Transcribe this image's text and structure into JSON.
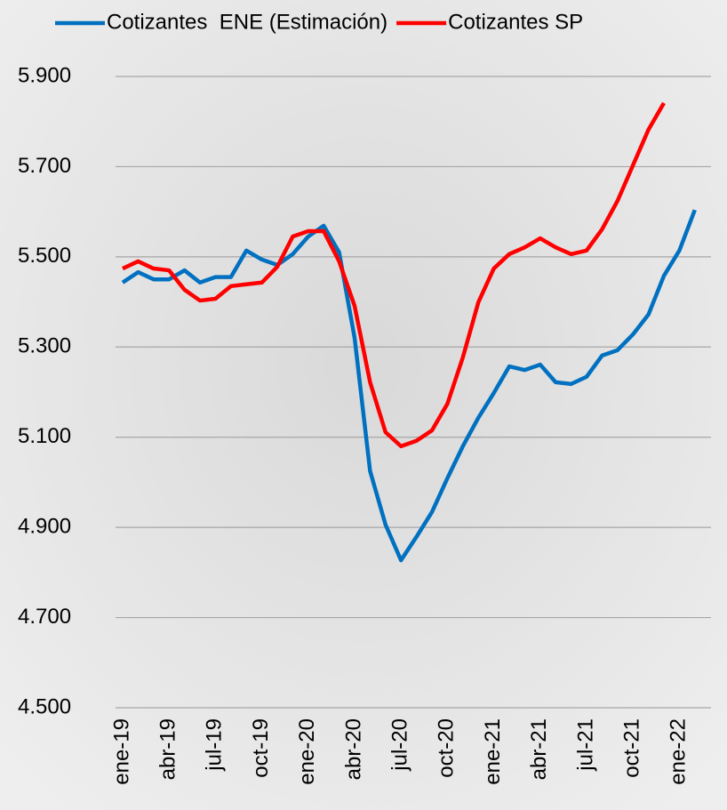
{
  "chart_data": {
    "type": "line",
    "categories": [
      "ene-19",
      null,
      null,
      "abr-19",
      null,
      null,
      "jul-19",
      null,
      null,
      "oct-19",
      null,
      null,
      "ene-20",
      null,
      null,
      "abr-20",
      null,
      null,
      "jul-20",
      null,
      null,
      "oct-20",
      null,
      null,
      "ene-21",
      null,
      null,
      "abr-21",
      null,
      null,
      "jul-21",
      null,
      null,
      "oct-21",
      null,
      null,
      "ene-22",
      null
    ],
    "series": [
      {
        "name": "Cotizantes  ENE (Estimación)",
        "color": "#0070c0",
        "values": [
          5443,
          5466,
          5450,
          5450,
          5470,
          5443,
          5455,
          5455,
          5514,
          5494,
          5482,
          5506,
          5545,
          5569,
          5510,
          5320,
          5025,
          4906,
          4827,
          4879,
          4934,
          5009,
          5080,
          5143,
          5198,
          5257,
          5249,
          5261,
          5222,
          5218,
          5234,
          5281,
          5293,
          5328,
          5372,
          5458,
          5514,
          5604
        ]
      },
      {
        "name": "Cotizantes SP",
        "color": "#ff0000",
        "values": [
          5474,
          5490,
          5474,
          5470,
          5427,
          5403,
          5407,
          5435,
          5439,
          5443,
          5478,
          5545,
          5557,
          5557,
          5490,
          5391,
          5222,
          5111,
          5080,
          5092,
          5115,
          5174,
          5277,
          5399,
          5474,
          5506,
          5521,
          5541,
          5521,
          5506,
          5514,
          5561,
          5624,
          5703,
          5782,
          5841,
          null,
          null
        ]
      }
    ],
    "ylim": [
      4500,
      5900
    ],
    "yticks": [
      {
        "value": 4500,
        "label": "4.500"
      },
      {
        "value": 4700,
        "label": "4.700"
      },
      {
        "value": 4900,
        "label": "4.900"
      },
      {
        "value": 5100,
        "label": "5.100"
      },
      {
        "value": 5300,
        "label": "5.300"
      },
      {
        "value": 5500,
        "label": "5.500"
      },
      {
        "value": 5700,
        "label": "5.700"
      },
      {
        "value": 5900,
        "label": "5.900"
      }
    ],
    "grid": true,
    "legend": "top"
  }
}
